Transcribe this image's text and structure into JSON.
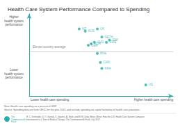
{
  "chart_data": {
    "type": "scatter",
    "title": "Health Care System Performance Compared to Spending",
    "labels": [
      "AUS",
      "UK",
      "NETH",
      "NZ",
      "NOR",
      "AUS",
      "SWE",
      "GER",
      "SWI",
      "BNE",
      "CAN",
      "FRA",
      "US"
    ],
    "x": [
      0.42,
      0.5,
      0.53,
      0.38,
      0.46,
      0.48,
      0.56,
      0.44,
      0.58,
      0.5,
      0.52,
      0.53,
      0.82
    ],
    "y": [
      0.82,
      0.85,
      0.74,
      0.85,
      0.65,
      0.67,
      0.67,
      0.63,
      0.7,
      0.52,
      0.4,
      0.32,
      0.1
    ],
    "color": "#2aacaa",
    "xlim": [
      0.05,
      1.0
    ],
    "ylim": [
      -0.05,
      1.05
    ],
    "tick_labels": false,
    "grid": false,
    "average_line": {
      "value": 0.535,
      "label": "Eleven-country average",
      "color": "#b0b0b0"
    },
    "y_label_higher": "Higher\nhealth system\nperformance",
    "y_label_lower": "Lower\nhealth system\nperformance",
    "x_label_lower": "Lower health care spending",
    "x_label_higher": "Higher health care spending",
    "note": "Note: Health care spending as a percent of GDP.\nSource: Spending data are from OECD for the year 2013, and exclude spending on capital formation of health care provisions.",
    "logo_text": "The\nCommonwealth\nFund",
    "footer": "E. C. Schneider, D. O. Sarnak, D. Squires, A. Shah, and M. M. Doty, Mirror, Mirror: How the U.S. Health Care System Compares\nInternational to a Time of Radical Change, The Commonwealth Fund, July 2017."
  }
}
